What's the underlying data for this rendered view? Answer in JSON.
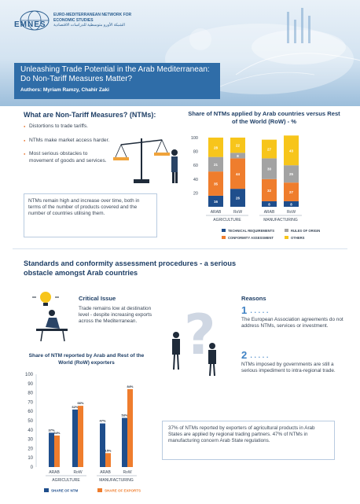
{
  "header": {
    "logo": "EMNES",
    "org_name": "EURO-MEDITERRANEAN NETWORK FOR ECONOMIC STUDIES",
    "org_name_ar": "الشبكة الأورو متوسطية للدراسات الاقتصادية",
    "title": "Unleashing Trade Potential in the Arab Mediterranean: Do Non-Tariff Measures Matter?",
    "authors": "Authors:  Myriam Ramzy, Chahir Zaki"
  },
  "ntm_section": {
    "heading": "What are Non-Tariff Measures? (NTMs):",
    "bullets": [
      "Distortions to trade tariffs.",
      "NTMs make market access harder.",
      "Most serious obstacles to movement of goods and services."
    ],
    "box_text": "NTMs remain high and increase over time, both in terms of the number of products covered and the number of countries utilising them."
  },
  "standards_section": {
    "heading": "Standards and conformity assessment procedures - a serious obstacle amongst Arab countries",
    "critical_heading": "Critical Issue",
    "critical_text": "Trade remains low at destination level - despite increasing exports across the Mediterranean.",
    "reasons_heading": "Reasons",
    "reason1_num": "1",
    "reason1": "The European Association agreements do not address NTMs, services or investment.",
    "reason2_num": "2",
    "reason2": "NTMs imposed by governments are still a serious impediment to intra-regional trade.",
    "dots": "• • • • •",
    "fact_box": "37% of NTMs reported by exporters of agricultural products in Arab States are applied by regional trading partners. 47% of NTMs in manufacturing concern Arab State regulations."
  },
  "chart_data": [
    {
      "type": "bar",
      "stacked": true,
      "title": "Share of NTMs applied by Arab countries versus Rest of the World (RoW) - %",
      "categories": [
        "ARAB",
        "RoW",
        "ARAB",
        "RoW"
      ],
      "groups": [
        "AGRICULTURE",
        "MANUFACTURING"
      ],
      "series": [
        {
          "name": "TECHNICAL REQUIREMENTS",
          "color": "#1f4e8c",
          "values": [
            16,
            26,
            8,
            8
          ]
        },
        {
          "name": "CONFORMITY ASSESSMENT",
          "color": "#ef7d2d",
          "values": [
            35,
            44,
            32,
            27
          ]
        },
        {
          "name": "RULES OF ORIGIN",
          "color": "#a3a3a3",
          "values": [
            21,
            8,
            30,
            25
          ]
        },
        {
          "name": "OTHERS",
          "color": "#f7c51b",
          "values": [
            28,
            22,
            27,
            43
          ]
        }
      ],
      "yticks": [
        20,
        40,
        60,
        80,
        100
      ],
      "ylim": [
        0,
        100
      ],
      "legend": "bottom"
    },
    {
      "type": "bar",
      "title": "Share of NTM reported by Arab and Rest of the World (RoW) exporters",
      "categories": [
        "ARAB",
        "RoW",
        "ARAB",
        "RoW"
      ],
      "groups": [
        "AGRICULTURE",
        "MANUFACTURING"
      ],
      "series": [
        {
          "name": "SHARE OF NTM",
          "color": "#1f4e8c",
          "values": [
            37,
            62,
            47,
            53
          ]
        },
        {
          "name": "SHARE OF EXPORTS",
          "color": "#ef7d2d",
          "values": [
            34,
            66,
            15,
            84
          ]
        }
      ],
      "value_labels": [
        [
          "37%",
          "62%",
          "47%",
          "53%"
        ],
        [
          "34%",
          "66%",
          "15%",
          "84%"
        ]
      ],
      "yticks": [
        0,
        10,
        20,
        30,
        40,
        50,
        60,
        70,
        80,
        90,
        100
      ],
      "ylim": [
        0,
        100
      ],
      "legend": "bottom"
    }
  ]
}
